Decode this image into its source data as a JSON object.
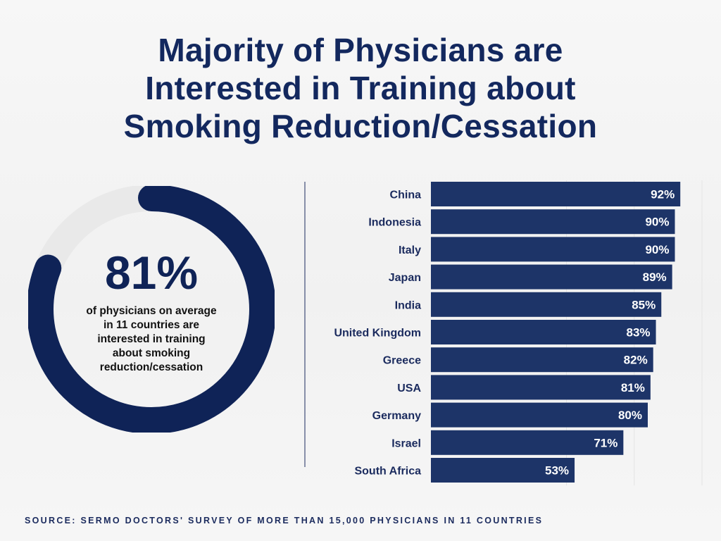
{
  "title": {
    "line1": "Majority of Physicians are",
    "line2": "Interested in Training about",
    "line3": "Smoking Reduction/Cessation"
  },
  "summary": {
    "value": "81%",
    "fraction": 0.81,
    "caption_lines": [
      "of physicians on average",
      "in 11 countries are",
      "interested in training",
      "about smoking",
      "reduction/cessation"
    ]
  },
  "colors": {
    "bar": "#1d3468",
    "ring": "#0f2357",
    "ring_track": "#e9e9e9",
    "label": "#1b2b5e"
  },
  "chart_data": {
    "type": "bar",
    "orientation": "horizontal",
    "title": "",
    "xlabel": "",
    "ylabel": "",
    "xlim": [
      0,
      100
    ],
    "categories": [
      "China",
      "Indonesia",
      "Italy",
      "Japan",
      "India",
      "United Kingdom",
      "Greece",
      "USA",
      "Germany",
      "Israel",
      "South Africa"
    ],
    "values": [
      92,
      90,
      90,
      89,
      85,
      83,
      82,
      81,
      80,
      71,
      53
    ],
    "labels": [
      "92%",
      "90%",
      "90%",
      "89%",
      "85%",
      "83%",
      "82%",
      "81%",
      "80%",
      "71%",
      "53%"
    ]
  },
  "source": "SOURCE: SERMO DOCTORS' SURVEY OF MORE THAN 15,000 PHYSICIANS IN 11 COUNTRIES"
}
